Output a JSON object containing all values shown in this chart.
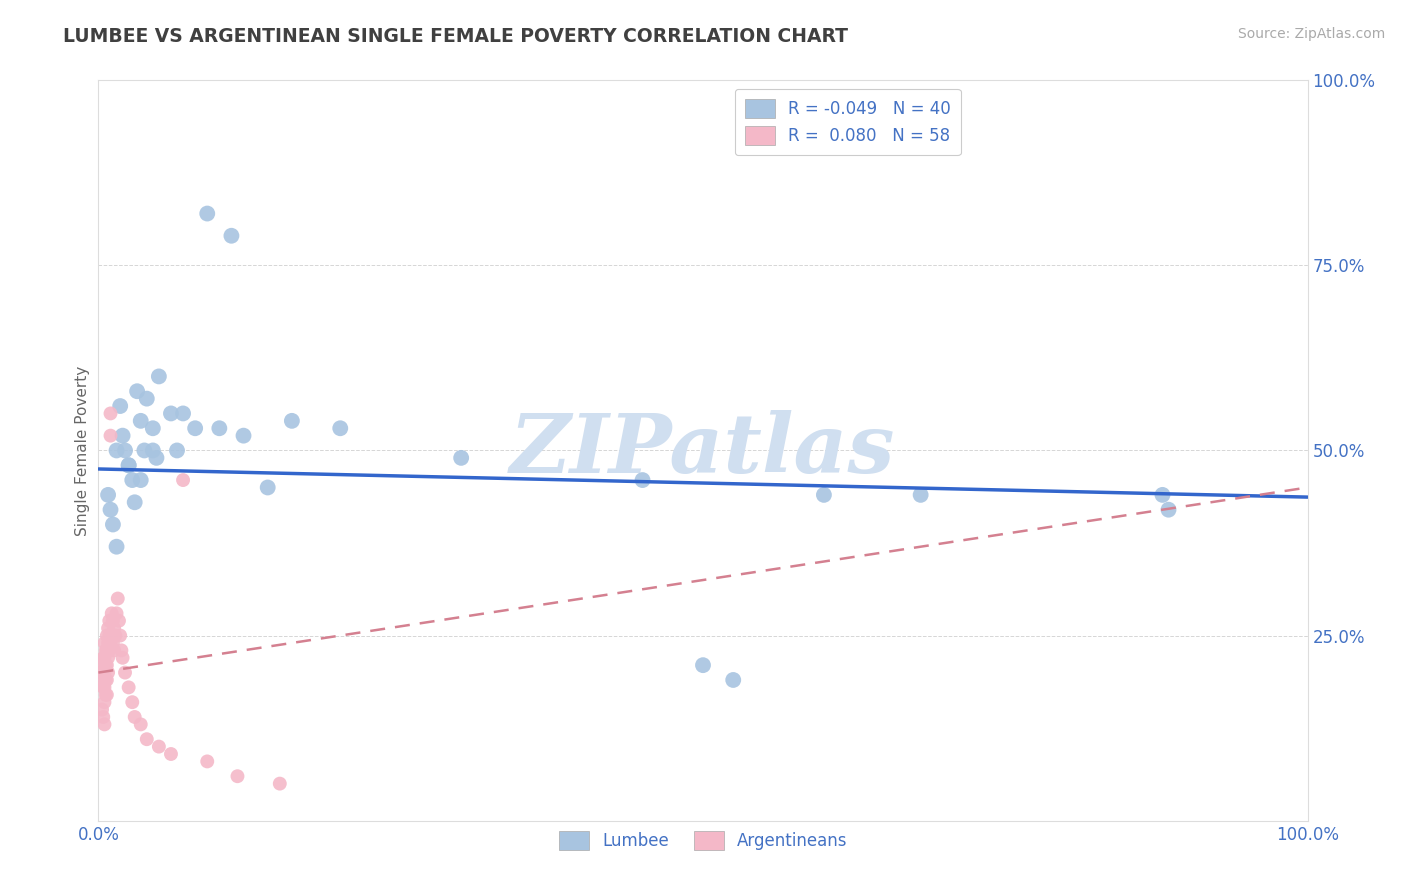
{
  "title": "LUMBEE VS ARGENTINEAN SINGLE FEMALE POVERTY CORRELATION CHART",
  "source": "Source: ZipAtlas.com",
  "ylabel": "Single Female Poverty",
  "lumbee_color": "#a8c4e0",
  "argentinean_color": "#f4b8c8",
  "lumbee_line_color": "#3366cc",
  "argentinean_line_color": "#d48090",
  "watermark_color": "#d0dff0",
  "background_color": "#ffffff",
  "grid_color": "#cccccc",
  "text_color": "#4472c4",
  "title_color": "#404040",
  "lumbee_x": [
    0.008,
    0.01,
    0.012,
    0.015,
    0.018,
    0.02,
    0.022,
    0.025,
    0.028,
    0.03,
    0.032,
    0.035,
    0.038,
    0.04,
    0.045,
    0.048,
    0.05,
    0.06,
    0.065,
    0.07,
    0.08,
    0.09,
    0.1,
    0.11,
    0.12,
    0.14,
    0.16,
    0.2,
    0.3,
    0.45,
    0.5,
    0.525,
    0.6,
    0.68,
    0.88,
    0.885,
    0.015,
    0.025,
    0.035,
    0.045
  ],
  "lumbee_y": [
    0.44,
    0.42,
    0.4,
    0.37,
    0.56,
    0.52,
    0.5,
    0.48,
    0.46,
    0.43,
    0.58,
    0.54,
    0.5,
    0.57,
    0.53,
    0.49,
    0.6,
    0.55,
    0.5,
    0.55,
    0.53,
    0.82,
    0.53,
    0.79,
    0.52,
    0.45,
    0.54,
    0.53,
    0.49,
    0.46,
    0.21,
    0.19,
    0.44,
    0.44,
    0.44,
    0.42,
    0.5,
    0.48,
    0.46,
    0.5
  ],
  "argentinean_x": [
    0.002,
    0.003,
    0.003,
    0.004,
    0.004,
    0.004,
    0.005,
    0.005,
    0.005,
    0.005,
    0.005,
    0.006,
    0.006,
    0.006,
    0.006,
    0.007,
    0.007,
    0.007,
    0.007,
    0.007,
    0.008,
    0.008,
    0.008,
    0.008,
    0.009,
    0.009,
    0.009,
    0.01,
    0.01,
    0.01,
    0.011,
    0.011,
    0.012,
    0.012,
    0.013,
    0.013,
    0.014,
    0.015,
    0.016,
    0.017,
    0.018,
    0.019,
    0.02,
    0.022,
    0.025,
    0.028,
    0.03,
    0.035,
    0.04,
    0.05,
    0.06,
    0.07,
    0.09,
    0.115,
    0.15,
    0.003,
    0.004,
    0.005
  ],
  "argentinean_y": [
    0.21,
    0.2,
    0.19,
    0.22,
    0.2,
    0.18,
    0.24,
    0.22,
    0.2,
    0.18,
    0.16,
    0.23,
    0.21,
    0.19,
    0.17,
    0.25,
    0.23,
    0.21,
    0.19,
    0.17,
    0.26,
    0.24,
    0.22,
    0.2,
    0.27,
    0.25,
    0.23,
    0.55,
    0.52,
    0.24,
    0.28,
    0.25,
    0.27,
    0.24,
    0.26,
    0.23,
    0.25,
    0.28,
    0.3,
    0.27,
    0.25,
    0.23,
    0.22,
    0.2,
    0.18,
    0.16,
    0.14,
    0.13,
    0.11,
    0.1,
    0.09,
    0.46,
    0.08,
    0.06,
    0.05,
    0.15,
    0.14,
    0.13
  ],
  "lumbee_R": -0.049,
  "lumbee_N": 40,
  "argentinean_R": 0.08,
  "argentinean_N": 58,
  "xlim": [
    0,
    1.0
  ],
  "ylim": [
    0,
    1.0
  ]
}
